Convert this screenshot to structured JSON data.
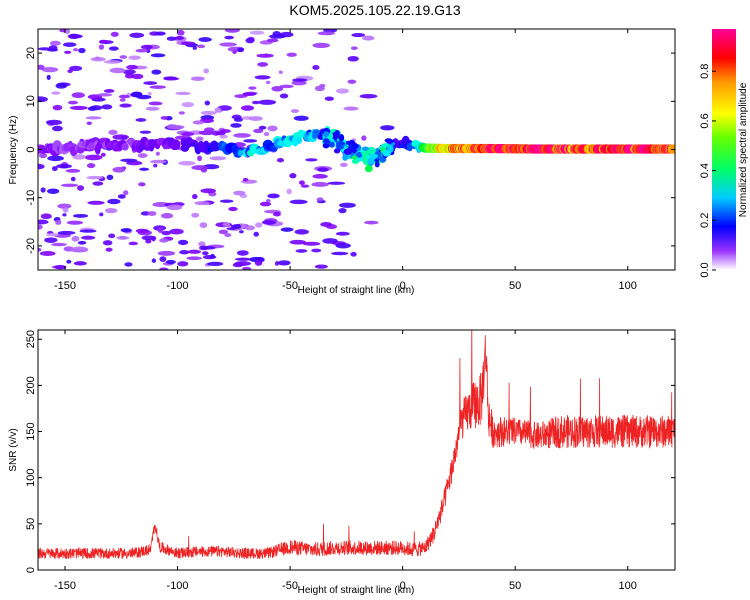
{
  "figure": {
    "title": "KOM5.2025.105.22.19.G13"
  },
  "chart_data": [
    {
      "type": "heatmap",
      "title": "KOM5.2025.105.22.19.G13",
      "xlabel": "Height of straight line (km)",
      "ylabel": "Frequency (Hz)",
      "xlim": [
        -162,
        121
      ],
      "ylim": [
        -25,
        25
      ],
      "xticks": [
        -150,
        -100,
        -50,
        0,
        50,
        100
      ],
      "yticks": [
        -20,
        -10,
        0,
        10,
        20
      ],
      "colorbar": {
        "label": "Normalized spectral amplitude",
        "range": [
          0,
          0.97
        ],
        "ticks": [
          "0.0",
          "0.2",
          "0.4",
          "0.6",
          "0.8"
        ],
        "colormap": [
          "#ffffff",
          "#8000ff",
          "#0000ff",
          "#00ffff",
          "#00ff00",
          "#ffff00",
          "#ff8000",
          "#ff0000",
          "#ff00a0"
        ]
      },
      "ridge": {
        "x": [
          -162,
          -140,
          -120,
          -100,
          -80,
          -70,
          -60,
          -50,
          -42,
          -35,
          -30,
          -25,
          -20,
          -15,
          -10,
          -5,
          0,
          5,
          10,
          20,
          40,
          60,
          80,
          100,
          121
        ],
        "y": [
          0,
          0.5,
          1,
          1,
          0.5,
          -0.5,
          0.5,
          2,
          3,
          3,
          2,
          0,
          -1,
          -2,
          -1,
          1,
          1.5,
          1,
          0.3,
          0.2,
          0.2,
          0.1,
          0.1,
          0.1,
          0.1
        ],
        "amplitude": [
          0.1,
          0.1,
          0.12,
          0.15,
          0.25,
          0.35,
          0.3,
          0.35,
          0.3,
          0.3,
          0.3,
          0.35,
          0.4,
          0.35,
          0.3,
          0.25,
          0.2,
          0.3,
          0.45,
          0.7,
          0.9,
          0.95,
          0.8,
          0.9,
          0.85
        ]
      },
      "scatter_region": {
        "xmin": -162,
        "xmax": 0,
        "ymin": -25,
        "ymax": 25,
        "amplitude_range": [
          0.05,
          0.2
        ]
      }
    },
    {
      "type": "line",
      "xlabel": "Height of straight line (km)",
      "ylabel": "SNR (v/v)",
      "xlim": [
        -162,
        121
      ],
      "ylim": [
        0,
        260
      ],
      "xticks": [
        -150,
        -100,
        -50,
        0,
        50,
        100
      ],
      "yticks": [
        0,
        50,
        100,
        150,
        200,
        250
      ],
      "color": "#ee2222",
      "series": [
        {
          "x": [
            -162,
            -140,
            -120,
            -112,
            -110,
            -108,
            -100,
            -90,
            -80,
            -70,
            -60,
            -50,
            -40,
            -30,
            -20,
            -10,
            0,
            5,
            10,
            14,
            18,
            22,
            26,
            30,
            35,
            37,
            38,
            40,
            50,
            60,
            70,
            80,
            90,
            100,
            110,
            121
          ],
          "values": [
            18,
            18,
            18,
            22,
            50,
            25,
            18,
            20,
            20,
            18,
            18,
            25,
            22,
            24,
            24,
            24,
            24,
            22,
            24,
            40,
            70,
            110,
            160,
            175,
            185,
            240,
            170,
            150,
            150,
            145,
            150,
            150,
            150,
            150,
            150,
            150
          ],
          "noise_amplitude": [
            6,
            6,
            6,
            6,
            6,
            6,
            6,
            6,
            6,
            6,
            6,
            8,
            8,
            8,
            8,
            8,
            8,
            8,
            8,
            10,
            12,
            15,
            20,
            25,
            30,
            30,
            25,
            18,
            15,
            15,
            18,
            18,
            18,
            18,
            18,
            18
          ]
        }
      ]
    }
  ]
}
